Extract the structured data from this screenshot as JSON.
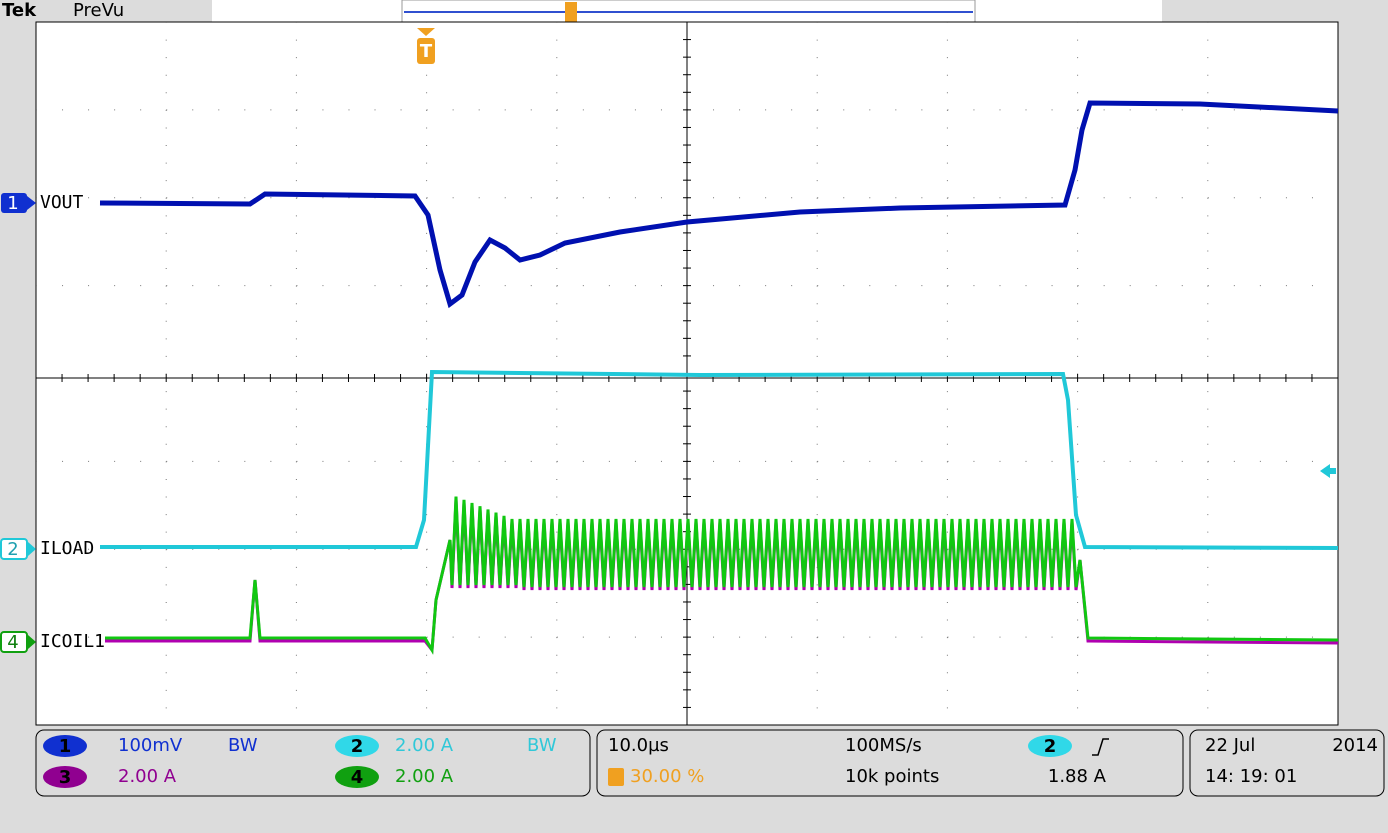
{
  "header": {
    "brand": "Tek",
    "mode": "PreVu"
  },
  "trigger": {
    "marker": "T"
  },
  "traces": [
    {
      "channel": "1",
      "label": "VOUT"
    },
    {
      "channel": "2",
      "label": "ILOAD"
    },
    {
      "channel": "4",
      "label": "ICOIL1"
    }
  ],
  "channels": [
    {
      "channel": "1",
      "scale": "100mV",
      "bw": "BW"
    },
    {
      "channel": "2",
      "scale": "2.00 A",
      "bw": "BW"
    },
    {
      "channel": "3",
      "scale": "2.00 A"
    },
    {
      "channel": "4",
      "scale": "2.00 A"
    }
  ],
  "timebase": {
    "scale": "10.0µs",
    "trigger_position": "30.00 %",
    "sample_rate": "100MS/s",
    "record_length": "10k points"
  },
  "trigger_settings": {
    "source": "2",
    "level": "1.88 A"
  },
  "date": {
    "day_month": "22 Jul",
    "year": "2014",
    "time": "14: 19: 01"
  }
}
